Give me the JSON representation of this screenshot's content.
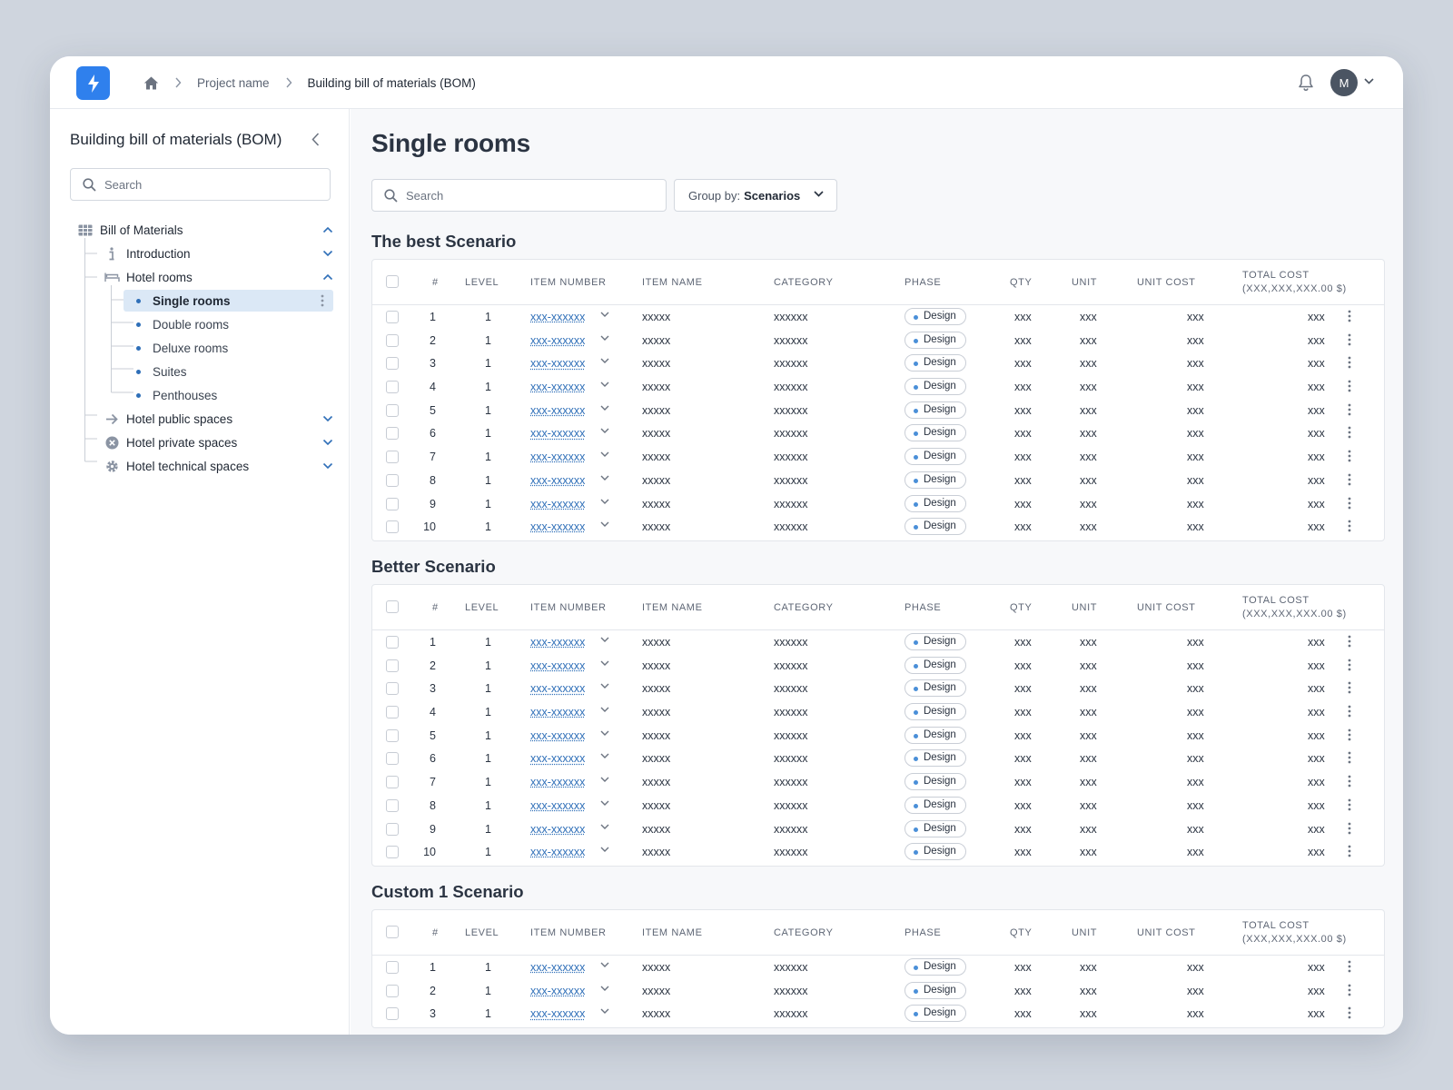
{
  "topbar": {
    "breadcrumbs": [
      "Project name",
      "Building bill of materials (BOM)"
    ],
    "avatar_initial": "M"
  },
  "sidebar": {
    "title": "Building bill of materials (BOM)",
    "search_placeholder": "Search",
    "tree": {
      "root": "Bill of Materials",
      "introduction": "Introduction",
      "hotel_rooms": "Hotel rooms",
      "rooms": [
        "Single rooms",
        "Double rooms",
        "Deluxe rooms",
        "Suites",
        "Penthouses"
      ],
      "public": "Hotel public spaces",
      "private": "Hotel private spaces",
      "technical": "Hotel technical spaces"
    }
  },
  "main": {
    "title": "Single rooms",
    "search_placeholder": "Search",
    "group_by_label": "Group by:",
    "group_by_value": "Scenarios",
    "columns": {
      "num": "#",
      "level": "LEVEL",
      "item_number": "ITEM NUMBER",
      "item_name": "ITEM NAME",
      "category": "CATEGORY",
      "phase": "PHASE",
      "qty": "QTY",
      "unit": "UNIT",
      "unit_cost": "UNIT COST",
      "total_cost": "TOTAL COST",
      "total_cost_sub": "(XXX,XXX,XXX.00 $)"
    },
    "sections": [
      {
        "title": "The best Scenario",
        "rows": [
          {
            "num": "1",
            "level": "1",
            "item_number": "xxx-xxxxxx",
            "item_name": "xxxxx",
            "category": "xxxxxx",
            "phase": "Design",
            "qty": "xxx",
            "unit": "xxx",
            "unit_cost": "xxx",
            "total_cost": "xxx"
          },
          {
            "num": "2",
            "level": "1",
            "item_number": "xxx-xxxxxx",
            "item_name": "xxxxx",
            "category": "xxxxxx",
            "phase": "Design",
            "qty": "xxx",
            "unit": "xxx",
            "unit_cost": "xxx",
            "total_cost": "xxx"
          },
          {
            "num": "3",
            "level": "1",
            "item_number": "xxx-xxxxxx",
            "item_name": "xxxxx",
            "category": "xxxxxx",
            "phase": "Design",
            "qty": "xxx",
            "unit": "xxx",
            "unit_cost": "xxx",
            "total_cost": "xxx"
          },
          {
            "num": "4",
            "level": "1",
            "item_number": "xxx-xxxxxx",
            "item_name": "xxxxx",
            "category": "xxxxxx",
            "phase": "Design",
            "qty": "xxx",
            "unit": "xxx",
            "unit_cost": "xxx",
            "total_cost": "xxx"
          },
          {
            "num": "5",
            "level": "1",
            "item_number": "xxx-xxxxxx",
            "item_name": "xxxxx",
            "category": "xxxxxx",
            "phase": "Design",
            "qty": "xxx",
            "unit": "xxx",
            "unit_cost": "xxx",
            "total_cost": "xxx"
          },
          {
            "num": "6",
            "level": "1",
            "item_number": "xxx-xxxxxx",
            "item_name": "xxxxx",
            "category": "xxxxxx",
            "phase": "Design",
            "qty": "xxx",
            "unit": "xxx",
            "unit_cost": "xxx",
            "total_cost": "xxx"
          },
          {
            "num": "7",
            "level": "1",
            "item_number": "xxx-xxxxxx",
            "item_name": "xxxxx",
            "category": "xxxxxx",
            "phase": "Design",
            "qty": "xxx",
            "unit": "xxx",
            "unit_cost": "xxx",
            "total_cost": "xxx"
          },
          {
            "num": "8",
            "level": "1",
            "item_number": "xxx-xxxxxx",
            "item_name": "xxxxx",
            "category": "xxxxxx",
            "phase": "Design",
            "qty": "xxx",
            "unit": "xxx",
            "unit_cost": "xxx",
            "total_cost": "xxx"
          },
          {
            "num": "9",
            "level": "1",
            "item_number": "xxx-xxxxxx",
            "item_name": "xxxxx",
            "category": "xxxxxx",
            "phase": "Design",
            "qty": "xxx",
            "unit": "xxx",
            "unit_cost": "xxx",
            "total_cost": "xxx"
          },
          {
            "num": "10",
            "level": "1",
            "item_number": "xxx-xxxxxx",
            "item_name": "xxxxx",
            "category": "xxxxxx",
            "phase": "Design",
            "qty": "xxx",
            "unit": "xxx",
            "unit_cost": "xxx",
            "total_cost": "xxx"
          }
        ]
      },
      {
        "title": "Better Scenario",
        "rows": [
          {
            "num": "1",
            "level": "1",
            "item_number": "xxx-xxxxxx",
            "item_name": "xxxxx",
            "category": "xxxxxx",
            "phase": "Design",
            "qty": "xxx",
            "unit": "xxx",
            "unit_cost": "xxx",
            "total_cost": "xxx"
          },
          {
            "num": "2",
            "level": "1",
            "item_number": "xxx-xxxxxx",
            "item_name": "xxxxx",
            "category": "xxxxxx",
            "phase": "Design",
            "qty": "xxx",
            "unit": "xxx",
            "unit_cost": "xxx",
            "total_cost": "xxx"
          },
          {
            "num": "3",
            "level": "1",
            "item_number": "xxx-xxxxxx",
            "item_name": "xxxxx",
            "category": "xxxxxx",
            "phase": "Design",
            "qty": "xxx",
            "unit": "xxx",
            "unit_cost": "xxx",
            "total_cost": "xxx"
          },
          {
            "num": "4",
            "level": "1",
            "item_number": "xxx-xxxxxx",
            "item_name": "xxxxx",
            "category": "xxxxxx",
            "phase": "Design",
            "qty": "xxx",
            "unit": "xxx",
            "unit_cost": "xxx",
            "total_cost": "xxx"
          },
          {
            "num": "5",
            "level": "1",
            "item_number": "xxx-xxxxxx",
            "item_name": "xxxxx",
            "category": "xxxxxx",
            "phase": "Design",
            "qty": "xxx",
            "unit": "xxx",
            "unit_cost": "xxx",
            "total_cost": "xxx"
          },
          {
            "num": "6",
            "level": "1",
            "item_number": "xxx-xxxxxx",
            "item_name": "xxxxx",
            "category": "xxxxxx",
            "phase": "Design",
            "qty": "xxx",
            "unit": "xxx",
            "unit_cost": "xxx",
            "total_cost": "xxx"
          },
          {
            "num": "7",
            "level": "1",
            "item_number": "xxx-xxxxxx",
            "item_name": "xxxxx",
            "category": "xxxxxx",
            "phase": "Design",
            "qty": "xxx",
            "unit": "xxx",
            "unit_cost": "xxx",
            "total_cost": "xxx"
          },
          {
            "num": "8",
            "level": "1",
            "item_number": "xxx-xxxxxx",
            "item_name": "xxxxx",
            "category": "xxxxxx",
            "phase": "Design",
            "qty": "xxx",
            "unit": "xxx",
            "unit_cost": "xxx",
            "total_cost": "xxx"
          },
          {
            "num": "9",
            "level": "1",
            "item_number": "xxx-xxxxxx",
            "item_name": "xxxxx",
            "category": "xxxxxx",
            "phase": "Design",
            "qty": "xxx",
            "unit": "xxx",
            "unit_cost": "xxx",
            "total_cost": "xxx"
          },
          {
            "num": "10",
            "level": "1",
            "item_number": "xxx-xxxxxx",
            "item_name": "xxxxx",
            "category": "xxxxxx",
            "phase": "Design",
            "qty": "xxx",
            "unit": "xxx",
            "unit_cost": "xxx",
            "total_cost": "xxx"
          }
        ]
      },
      {
        "title": "Custom 1 Scenario",
        "rows": [
          {
            "num": "1",
            "level": "1",
            "item_number": "xxx-xxxxxx",
            "item_name": "xxxxx",
            "category": "xxxxxx",
            "phase": "Design",
            "qty": "xxx",
            "unit": "xxx",
            "unit_cost": "xxx",
            "total_cost": "xxx"
          },
          {
            "num": "2",
            "level": "1",
            "item_number": "xxx-xxxxxx",
            "item_name": "xxxxx",
            "category": "xxxxxx",
            "phase": "Design",
            "qty": "xxx",
            "unit": "xxx",
            "unit_cost": "xxx",
            "total_cost": "xxx"
          },
          {
            "num": "3",
            "level": "1",
            "item_number": "xxx-xxxxxx",
            "item_name": "xxxxx",
            "category": "xxxxxx",
            "phase": "Design",
            "qty": "xxx",
            "unit": "xxx",
            "unit_cost": "xxx",
            "total_cost": "xxx"
          }
        ]
      }
    ]
  },
  "colors": {
    "accent": "#2f80ed",
    "link": "#2f6fb8",
    "selected_bg": "#dbe8f6",
    "background": "#cfd5de"
  }
}
